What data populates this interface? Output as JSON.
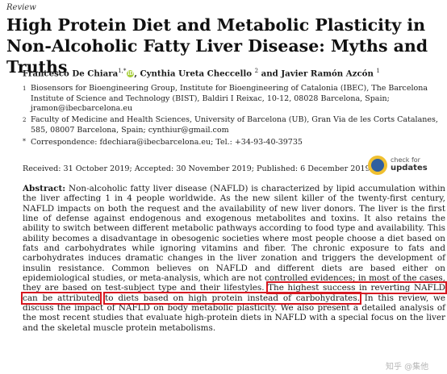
{
  "header": {
    "article_type": "Review",
    "title_line1": "High Protein Diet and Metabolic Plasticity in",
    "title_line2": "Non-Alcoholic Fatty Liver Disease: Myths and Truths"
  },
  "authors": {
    "a1": "Francesco De Chiara",
    "a1_sup": "1,*",
    "orcid_label": "iD",
    "sep1": ", ",
    "a2": "Cynthia Ureta Checcello",
    "a2_sup": "2",
    "sep2": " and ",
    "a3": "Javier Ramón Azcón",
    "a3_sup": "1"
  },
  "affiliations": [
    {
      "num": "1",
      "text": "Biosensors for Bioengineering Group, Institute for Bioengineering of Catalonia (IBEC), The Barcelona Institute of Science and Technology (BIST), Baldiri I Reixac, 10-12, 08028 Barcelona, Spain; jramon@ibecbarcelona.eu"
    },
    {
      "num": "2",
      "text": "Faculty of Medicine and Health Sciences, University of Barcelona (UB), Gran Via de les Corts Catalanes, 585, 08007 Barcelona, Spain; cynthiur@gmail.com"
    },
    {
      "num": "*",
      "text": "Correspondence: fdechiara@ibecbarcelona.eu; Tel.: +34-93-40-39735"
    }
  ],
  "dates": "Received: 31 October 2019; Accepted: 30 November 2019; Published: 6 December 2019",
  "check_updates": {
    "line1": "check for",
    "line2": "updates"
  },
  "abstract": {
    "label": "Abstract:",
    "part1": " Non-alcoholic fatty liver disease (NAFLD) is characterized by lipid accumulation within the liver affecting 1 in 4 people worldwide. As the new silent killer of the twenty-first century, NAFLD impacts on both the request and the availability of new liver donors. The liver is the first line of defense against endogenous and exogenous metabolites and toxins. It also retains the ability to switch between different metabolic pathways according to food type and availability. This ability becomes a disadvantage in obesogenic societies where most people choose a diet based on fats and carbohydrates while ignoring vitamins and fiber. The chronic exposure to fats and carbohydrates induces dramatic changes in the liver zonation and triggers the development of insulin resistance. Common believes on NAFLD and different diets are based either on epidemiological studies, or meta-analysis, which are not controlled evidences; in most of the cases, they are based on test-subject type and their lifestyles. ",
    "highlight1": "The highest success in reverting NAFLD can be attributed",
    "highlight2": "to diets based on high protein instead of carbohydrates.",
    "part2": " In this review, we discuss the impact of NAFLD on body metabolic plasticity. We also present a detailed analysis of the most recent studies that evaluate high-protein diets in NAFLD with a special focus on the liver and the skeletal muscle protein metabolisms."
  },
  "watermark": "知乎 @集他",
  "colors": {
    "highlight_box": "#d7171f",
    "orcid": "#a6ce39",
    "check_updates_blue": "#2f5f9f",
    "check_updates_yellow": "#f0c030"
  }
}
